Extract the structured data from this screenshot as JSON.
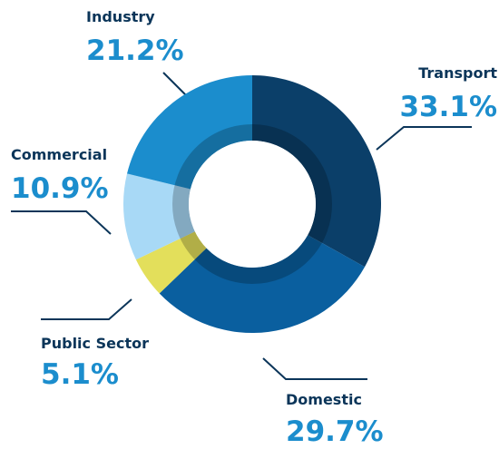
{
  "chart_data": {
    "type": "donut",
    "categories": [
      "Transport",
      "Domestic",
      "Public Sector",
      "Commercial",
      "Industry"
    ],
    "values": [
      33.1,
      29.7,
      5.1,
      10.9,
      21.2
    ],
    "value_labels": [
      "33.1%",
      "29.7%",
      "5.1%",
      "10.9%",
      "21.2%"
    ],
    "colors": [
      "#0b3f69",
      "#0a5f9f",
      "#e3df5b",
      "#a8d9f6",
      "#1b8dcd"
    ]
  }
}
